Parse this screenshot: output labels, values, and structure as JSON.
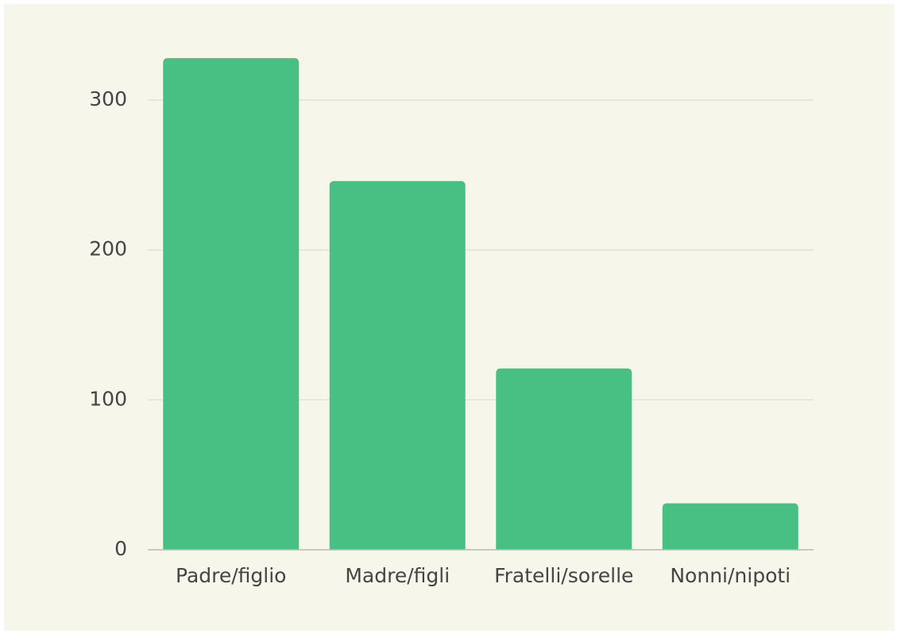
{
  "chart_data": {
    "type": "bar",
    "categories": [
      "Padre/figlio",
      "Madre/figli",
      "Fratelli/sorelle",
      "Nonni/nipoti"
    ],
    "values": [
      328,
      246,
      121,
      31
    ],
    "color": "#48c083",
    "ylim": [
      0,
      340
    ],
    "yticks": [
      0,
      100,
      200,
      300
    ],
    "grid": true
  }
}
